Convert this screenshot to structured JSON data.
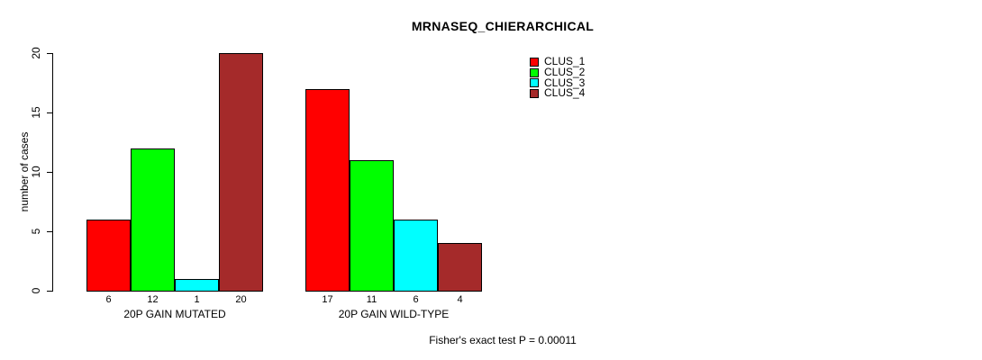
{
  "chart_data": {
    "type": "bar",
    "title": "MRNASEQ_CHIERARCHICAL",
    "ylabel": "number of cases",
    "xlabel": "",
    "ylim": [
      0,
      20
    ],
    "yticks": [
      0,
      5,
      10,
      15,
      20
    ],
    "categories": [
      "20P GAIN MUTATED",
      "20P GAIN WILD-TYPE"
    ],
    "series": [
      {
        "name": "CLUS_1",
        "color": "#FF0000",
        "values": [
          6,
          17
        ]
      },
      {
        "name": "CLUS_2",
        "color": "#00FF00",
        "values": [
          12,
          11
        ]
      },
      {
        "name": "CLUS_3",
        "color": "#00FFFF",
        "values": [
          1,
          6
        ]
      },
      {
        "name": "CLUS_4",
        "color": "#A52A2A",
        "values": [
          20,
          4
        ]
      }
    ],
    "bar_value_labels": {
      "20P GAIN MUTATED": [
        6,
        12,
        1,
        20
      ],
      "20P GAIN WILD-TYPE": [
        17,
        11,
        6,
        4
      ]
    },
    "legend_position": "top-right",
    "grid": false,
    "annotation": "Fisher's exact test P = 0.00011"
  }
}
